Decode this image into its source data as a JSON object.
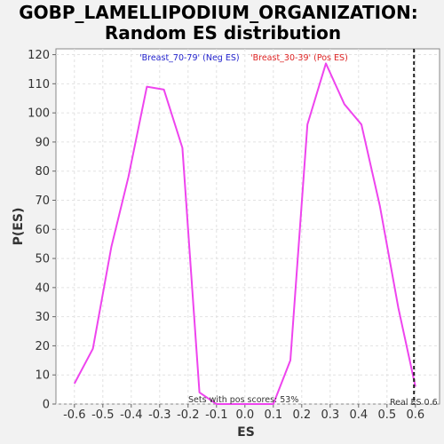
{
  "chart_data": {
    "type": "line",
    "title_line1": "GOBP_LAMELLIPODIUM_ORGANIZATION:",
    "title_line2": "Random ES distribution",
    "xlabel": "ES",
    "ylabel": "P(ES)",
    "xlim": [
      -0.665,
      0.685
    ],
    "ylim": [
      0,
      122
    ],
    "xticks": [
      -0.6,
      -0.5,
      -0.4,
      -0.3,
      -0.2,
      -0.1,
      0.0,
      0.1,
      0.2,
      0.3,
      0.4,
      0.5,
      0.6
    ],
    "xtick_labels": [
      "-0.6",
      "-0.5",
      "-0.4",
      "-0.3",
      "-0.2",
      "-0.1",
      "0.0",
      "0.1",
      "0.2",
      "0.3",
      "0.4",
      "0.5",
      "0.6"
    ],
    "yticks": [
      0,
      10,
      20,
      30,
      40,
      50,
      60,
      70,
      80,
      90,
      100,
      110,
      120
    ],
    "ytick_labels": [
      "0",
      "10",
      "20",
      "30",
      "40",
      "50",
      "60",
      "70",
      "80",
      "90",
      "100",
      "110",
      "120"
    ],
    "grid": true,
    "series": [
      {
        "color": "#ee44ee",
        "x": [
          -0.6,
          -0.535,
          -0.47,
          -0.41,
          -0.345,
          -0.285,
          -0.22,
          -0.16,
          -0.1,
          -0.04,
          0.03,
          0.1,
          0.16,
          0.22,
          0.285,
          0.35,
          0.41,
          0.475,
          0.54,
          0.6
        ],
        "y": [
          7,
          19,
          54,
          78,
          109,
          108,
          88,
          4,
          0,
          0,
          0,
          0,
          15,
          96,
          117,
          103,
          96,
          68,
          33,
          6
        ]
      }
    ],
    "legend_neg": "'Breast_70-79' (Neg ES)",
    "legend_pos": "'Breast_30-39' (Pos ES)",
    "legend_neg_color": "#2222cc",
    "legend_pos_color": "#dd2222",
    "annotation_sets": "Sets with pos scores: 53%",
    "annotation_real": "Real ES 0.6",
    "real_es": 0.595
  }
}
